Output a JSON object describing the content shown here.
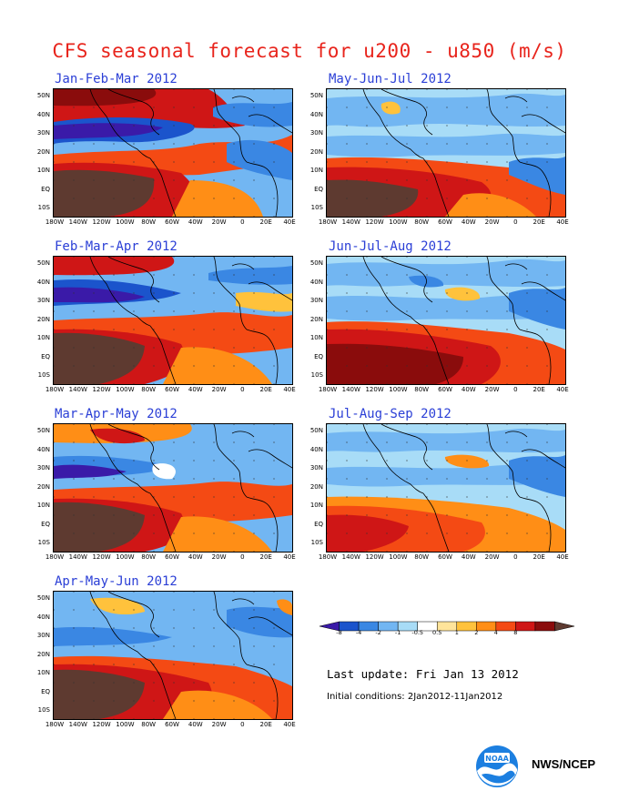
{
  "title": "CFS seasonal forecast for u200 - u850 (m/s)",
  "panels": [
    {
      "label": "Jan-Feb-Mar 2012"
    },
    {
      "label": "May-Jun-Jul 2012"
    },
    {
      "label": "Feb-Mar-Apr 2012"
    },
    {
      "label": "Jun-Jul-Aug 2012"
    },
    {
      "label": "Mar-Apr-May 2012"
    },
    {
      "label": "Jul-Aug-Sep 2012"
    },
    {
      "label": "Apr-May-Jun 2012"
    }
  ],
  "lat_labels": [
    "50N",
    "40N",
    "30N",
    "20N",
    "10N",
    "EQ",
    "10S"
  ],
  "lon_labels": [
    "180W",
    "140W",
    "120W",
    "100W",
    "80W",
    "60W",
    "40W",
    "20W",
    "0",
    "20E",
    "40E"
  ],
  "colorbar": {
    "ticks": [
      "-8",
      "-4",
      "-2",
      "-1",
      "-0.5",
      "0.5",
      "1",
      "2",
      "4",
      "8"
    ],
    "colors": [
      "#3a1aa8",
      "#1b54cc",
      "#3a87e3",
      "#72b6f2",
      "#a8dcf7",
      "#ffffff",
      "#ffe49a",
      "#ffc23c",
      "#ff8e16",
      "#f44a14",
      "#cf1616",
      "#8a0c0c",
      "#5e3a30"
    ]
  },
  "last_update": "Last update: Fri Jan 13 2012",
  "initial_conditions": "Initial conditions: 2Jan2012-11Jan2012",
  "agency": "NWS/NCEP",
  "logo_text": "NOAA"
}
